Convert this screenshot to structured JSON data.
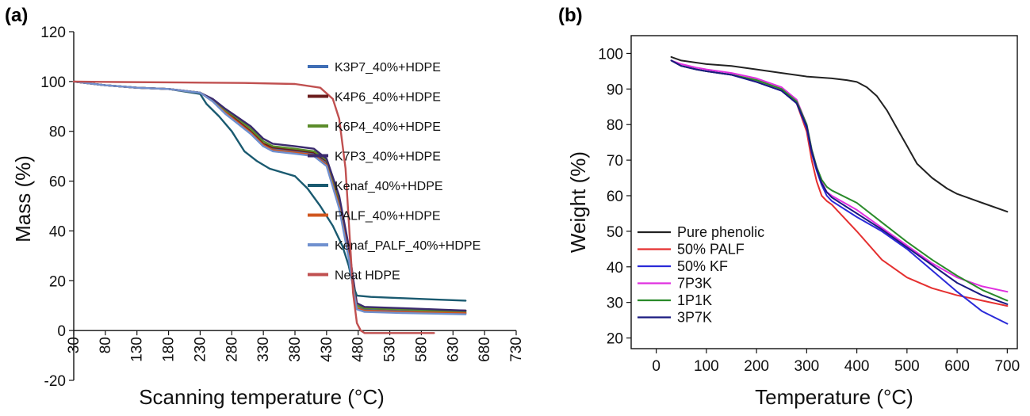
{
  "chart_data": [
    {
      "type": "line",
      "panel_label": "(a)",
      "xlabel": "Scanning temperature (°C)",
      "ylabel": "Mass (%)",
      "xlim": [
        30,
        730
      ],
      "ylim": [
        -20,
        120
      ],
      "xticks": [
        30,
        80,
        130,
        180,
        230,
        280,
        330,
        380,
        430,
        480,
        530,
        580,
        630,
        680,
        730
      ],
      "yticks": [
        -20,
        0,
        20,
        40,
        60,
        80,
        100,
        120
      ],
      "legend_position": "upper-right",
      "series": [
        {
          "name": "K3P7_40%+HDPE",
          "color": "#3f6eb5",
          "x": [
            30,
            80,
            130,
            180,
            230,
            250,
            270,
            290,
            310,
            330,
            345,
            380,
            410,
            430,
            450,
            465,
            472,
            478,
            490,
            550,
            600,
            650
          ],
          "y": [
            100,
            98.5,
            97.5,
            97,
            95.5,
            92,
            87,
            83,
            79,
            74,
            73,
            72,
            71,
            67,
            50,
            30,
            18,
            9,
            8.5,
            8,
            7.5,
            7
          ]
        },
        {
          "name": "K4P6_40%+HDPE",
          "color": "#6b1c1c",
          "x": [
            30,
            80,
            130,
            180,
            230,
            250,
            270,
            290,
            310,
            330,
            345,
            380,
            410,
            430,
            450,
            465,
            472,
            478,
            490,
            550,
            600,
            650
          ],
          "y": [
            100,
            98.5,
            97.5,
            97,
            95.5,
            92.5,
            88,
            84,
            80,
            75,
            73.5,
            72.5,
            71.5,
            68,
            52,
            32,
            19,
            10,
            9,
            8.5,
            8.2,
            8
          ]
        },
        {
          "name": "K6P4_40%+HDPE",
          "color": "#5b8c2a",
          "x": [
            30,
            80,
            130,
            180,
            230,
            250,
            270,
            290,
            310,
            330,
            345,
            380,
            410,
            430,
            450,
            465,
            472,
            478,
            490,
            550,
            600,
            650
          ],
          "y": [
            100,
            98.5,
            97.5,
            97,
            95.5,
            92.5,
            88.5,
            85,
            81,
            76,
            74,
            73,
            72,
            68.5,
            53,
            33,
            20,
            10,
            9,
            8.5,
            8,
            7.5
          ]
        },
        {
          "name": "K7P3_40%+HDPE",
          "color": "#3a2a6e",
          "x": [
            30,
            80,
            130,
            180,
            230,
            250,
            270,
            290,
            310,
            330,
            345,
            380,
            410,
            430,
            450,
            465,
            472,
            478,
            490,
            550,
            600,
            650
          ],
          "y": [
            100,
            98.5,
            97.5,
            97,
            95.5,
            93,
            89,
            85.5,
            82,
            77,
            75,
            74,
            73,
            69,
            54,
            34,
            21,
            11,
            9.5,
            9,
            8.5,
            8
          ]
        },
        {
          "name": "Kenaf_40%+HDPE",
          "color": "#1a5a70",
          "x": [
            30,
            80,
            130,
            180,
            230,
            240,
            260,
            280,
            300,
            320,
            340,
            360,
            380,
            400,
            420,
            440,
            455,
            465,
            472,
            478,
            500,
            550,
            600,
            650
          ],
          "y": [
            100,
            98.5,
            97.5,
            97,
            95,
            91,
            86,
            80,
            72,
            68,
            65,
            63.5,
            62,
            57,
            50,
            42,
            34,
            26,
            18,
            14,
            13.5,
            13,
            12.5,
            12
          ]
        },
        {
          "name": "PALF_40%+HDPE",
          "color": "#d0561e",
          "x": [
            30,
            80,
            130,
            180,
            230,
            250,
            270,
            290,
            310,
            330,
            345,
            380,
            410,
            430,
            450,
            465,
            472,
            478,
            490,
            550,
            600,
            650
          ],
          "y": [
            100,
            98.5,
            97.5,
            97,
            95.5,
            92,
            87.5,
            83.5,
            79.5,
            74.5,
            72.5,
            71.5,
            70.5,
            66.5,
            50,
            30,
            18,
            9,
            8,
            7.5,
            7.2,
            7
          ]
        },
        {
          "name": "Kenaf_PALF_40%+HDPE",
          "color": "#6f90cf",
          "x": [
            30,
            80,
            130,
            180,
            230,
            250,
            270,
            290,
            310,
            330,
            345,
            380,
            410,
            430,
            450,
            465,
            472,
            478,
            490,
            550,
            600,
            650
          ],
          "y": [
            100,
            98.5,
            97.5,
            97,
            95.5,
            92,
            87,
            83,
            79,
            74,
            72,
            71,
            70,
            66,
            49,
            29,
            17,
            8.5,
            7.5,
            7,
            6.8,
            6.5
          ]
        },
        {
          "name": "Neat HDPE",
          "color": "#c05050",
          "x": [
            30,
            100,
            200,
            300,
            380,
            420,
            440,
            450,
            460,
            466,
            472,
            478,
            484,
            490,
            500,
            560,
            600
          ],
          "y": [
            100,
            99.8,
            99.6,
            99.4,
            99,
            97.5,
            93,
            85,
            65,
            40,
            15,
            3,
            0,
            -1,
            -1,
            -1,
            -1
          ]
        }
      ]
    },
    {
      "type": "line",
      "panel_label": "(b)",
      "xlabel": "Temperature (°C)",
      "ylabel": "Weight (%)",
      "xlim": [
        -50,
        720
      ],
      "ylim": [
        17,
        105
      ],
      "xticks": [
        0,
        100,
        200,
        300,
        400,
        500,
        600,
        700
      ],
      "yticks": [
        20,
        30,
        40,
        50,
        60,
        70,
        80,
        90,
        100
      ],
      "legend_position": "lower-left",
      "series": [
        {
          "name": "Pure phenolic",
          "color": "#222222",
          "x": [
            30,
            50,
            100,
            150,
            200,
            250,
            300,
            350,
            380,
            400,
            420,
            440,
            460,
            480,
            500,
            520,
            550,
            580,
            600,
            650,
            700
          ],
          "y": [
            99,
            98,
            97,
            96.5,
            95.5,
            94.5,
            93.5,
            93,
            92.5,
            92,
            90.5,
            88,
            84,
            79,
            74,
            69,
            65,
            62,
            60.5,
            58,
            55.5
          ]
        },
        {
          "name": "50% PALF",
          "color": "#e53030",
          "x": [
            30,
            50,
            80,
            100,
            150,
            200,
            250,
            280,
            300,
            310,
            320,
            330,
            340,
            350,
            400,
            450,
            500,
            550,
            600,
            650,
            700
          ],
          "y": [
            98,
            96.5,
            95.5,
            95,
            94,
            92.5,
            90,
            86,
            78,
            70,
            64,
            60,
            58.5,
            57.5,
            50,
            42,
            37,
            34,
            32,
            30.5,
            29
          ]
        },
        {
          "name": "50% KF",
          "color": "#2a2ad8",
          "x": [
            30,
            50,
            80,
            100,
            150,
            200,
            250,
            280,
            300,
            310,
            320,
            330,
            340,
            350,
            400,
            450,
            500,
            550,
            600,
            650,
            700
          ],
          "y": [
            98,
            96.5,
            95.5,
            95,
            94,
            92,
            89.5,
            86,
            79,
            72,
            67,
            63,
            60,
            58.5,
            54,
            50,
            45,
            39,
            33,
            27.5,
            24
          ]
        },
        {
          "name": "7P3K",
          "color": "#e030e0",
          "x": [
            30,
            50,
            80,
            100,
            150,
            200,
            250,
            280,
            300,
            310,
            320,
            330,
            340,
            350,
            400,
            450,
            500,
            550,
            600,
            650,
            700
          ],
          "y": [
            98,
            97,
            96,
            95.5,
            94.5,
            93,
            90.5,
            87,
            80,
            73,
            68,
            64,
            61,
            60,
            56,
            51,
            46,
            41,
            37,
            34.5,
            33
          ]
        },
        {
          "name": "1P1K",
          "color": "#2a8a2a",
          "x": [
            30,
            50,
            80,
            100,
            150,
            200,
            250,
            280,
            300,
            310,
            320,
            330,
            340,
            350,
            400,
            450,
            500,
            550,
            600,
            650,
            700
          ],
          "y": [
            98,
            96.5,
            95.5,
            95,
            94,
            92.5,
            90,
            86.5,
            80,
            73,
            68,
            64.5,
            62.5,
            61.5,
            58,
            52.5,
            47,
            42,
            37.5,
            33.5,
            30.5
          ]
        },
        {
          "name": "3P7K",
          "color": "#1a1a80",
          "x": [
            30,
            50,
            80,
            100,
            150,
            200,
            250,
            280,
            300,
            310,
            320,
            330,
            340,
            350,
            400,
            450,
            500,
            550,
            600,
            650,
            700
          ],
          "y": [
            98,
            96.5,
            95.5,
            95,
            94,
            92,
            89.5,
            86,
            79.5,
            72.5,
            67.5,
            63.5,
            61,
            59.5,
            55,
            50.5,
            45.5,
            40.5,
            35.5,
            32,
            29.5
          ]
        }
      ]
    }
  ]
}
